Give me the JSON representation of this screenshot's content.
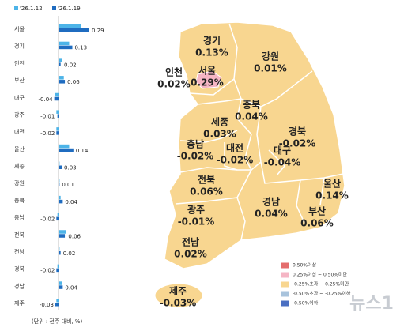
{
  "chart_data": {
    "type": "hbar-pair",
    "categories": [
      "서울",
      "경기",
      "인천",
      "부산",
      "대구",
      "광주",
      "대전",
      "울산",
      "세종",
      "강원",
      "충북",
      "충남",
      "전북",
      "전남",
      "경북",
      "경남",
      "제주"
    ],
    "series": [
      {
        "name": "'26.1.12",
        "color": "#4db4e8",
        "values": [
          0.21,
          0.1,
          0.03,
          0.05,
          -0.03,
          -0.02,
          -0.02,
          0.1,
          0.01,
          0.01,
          0.02,
          -0.01,
          0.07,
          0.01,
          -0.01,
          0.03,
          -0.02
        ]
      },
      {
        "name": "'26.1.19",
        "color": "#1f6cc0",
        "values": [
          0.29,
          0.13,
          0.02,
          0.06,
          -0.04,
          -0.01,
          -0.02,
          0.14,
          0.03,
          0.01,
          0.04,
          -0.02,
          0.06,
          0.02,
          -0.02,
          0.04,
          -0.03
        ]
      }
    ],
    "note": "(단위 : 전주 대비, %)"
  },
  "map": {
    "regions": [
      {
        "name": "경기",
        "value": "0.13%"
      },
      {
        "name": "강원",
        "value": "0.01%"
      },
      {
        "name": "인천",
        "value": "0.02%"
      },
      {
        "name": "서울",
        "value": "0.29%"
      },
      {
        "name": "충북",
        "value": "0.04%"
      },
      {
        "name": "세종",
        "value": "0.03%"
      },
      {
        "name": "충남",
        "value": "-0.02%"
      },
      {
        "name": "대전",
        "value": "-0.02%"
      },
      {
        "name": "경북",
        "value": "-0.02%"
      },
      {
        "name": "대구",
        "value": "-0.04%"
      },
      {
        "name": "울산",
        "value": "0.14%"
      },
      {
        "name": "전북",
        "value": "0.06%"
      },
      {
        "name": "경남",
        "value": "0.04%"
      },
      {
        "name": "부산",
        "value": "0.06%"
      },
      {
        "name": "광주",
        "value": "-0.01%"
      },
      {
        "name": "전남",
        "value": "0.02%"
      },
      {
        "name": "제주",
        "value": "-0.03%"
      }
    ],
    "legend": [
      {
        "label": "0.50%이상",
        "color": "#e46c6c"
      },
      {
        "label": "0.25%이상 ~ 0.50%미만",
        "color": "#f5b5c4"
      },
      {
        "label": "-0.25%초과 ~ 0.25%미만",
        "color": "#f8d690"
      },
      {
        "label": "-0.50%초과 ~ -0.25%이하",
        "color": "#a8c3dc"
      },
      {
        "label": "-0.50%이하",
        "color": "#4a6fc2"
      }
    ],
    "watermark": "뉴스1"
  }
}
